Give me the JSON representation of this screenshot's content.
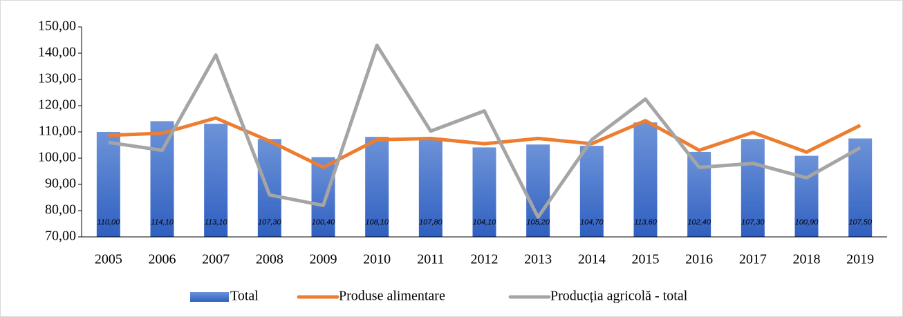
{
  "chart_data": {
    "type": "bar",
    "categories": [
      "2005",
      "2006",
      "2007",
      "2008",
      "2009",
      "2010",
      "2011",
      "2012",
      "2013",
      "2014",
      "2015",
      "2016",
      "2017",
      "2018",
      "2019"
    ],
    "series": [
      {
        "name": "Total",
        "color": "#4472c4",
        "type": "bar",
        "values": [
          110.0,
          114.1,
          113.1,
          107.3,
          100.4,
          108.1,
          107.8,
          104.1,
          105.2,
          104.7,
          113.6,
          102.4,
          107.3,
          100.9,
          107.5
        ],
        "value_labels": [
          "110,00",
          "114,10",
          "113,10",
          "107,30",
          "100,40",
          "108,10",
          "107,80",
          "104,10",
          "105,20",
          "104,70",
          "113,60",
          "102,40",
          "107,30",
          "100,90",
          "107,50"
        ]
      },
      {
        "name": "Produse alimentare",
        "color": "#ed7d31",
        "type": "line",
        "values": [
          108.7,
          109.5,
          115.3,
          106.5,
          96.5,
          107.0,
          107.5,
          105.5,
          107.5,
          105.5,
          114.3,
          103.0,
          109.8,
          102.3,
          112.5
        ]
      },
      {
        "name": "Producția agricolă - total",
        "color": "#a5a5a5",
        "type": "line",
        "values": [
          106.0,
          103.0,
          139.3,
          86.0,
          82.0,
          143.0,
          110.3,
          118.0,
          77.5,
          107.0,
          122.5,
          96.5,
          98.0,
          92.5,
          104.0
        ]
      }
    ],
    "ylim": [
      70,
      150
    ],
    "yticks": [
      {
        "value": 70,
        "label": "70,00"
      },
      {
        "value": 80,
        "label": "80,00"
      },
      {
        "value": 90,
        "label": "90,00"
      },
      {
        "value": 100,
        "label": "100,00"
      },
      {
        "value": 110,
        "label": "110,00"
      },
      {
        "value": 120,
        "label": "120,00"
      },
      {
        "value": 130,
        "label": "130,00"
      },
      {
        "value": 140,
        "label": "140,00"
      },
      {
        "value": 150,
        "label": "150,00"
      }
    ],
    "legend": "bottom"
  }
}
